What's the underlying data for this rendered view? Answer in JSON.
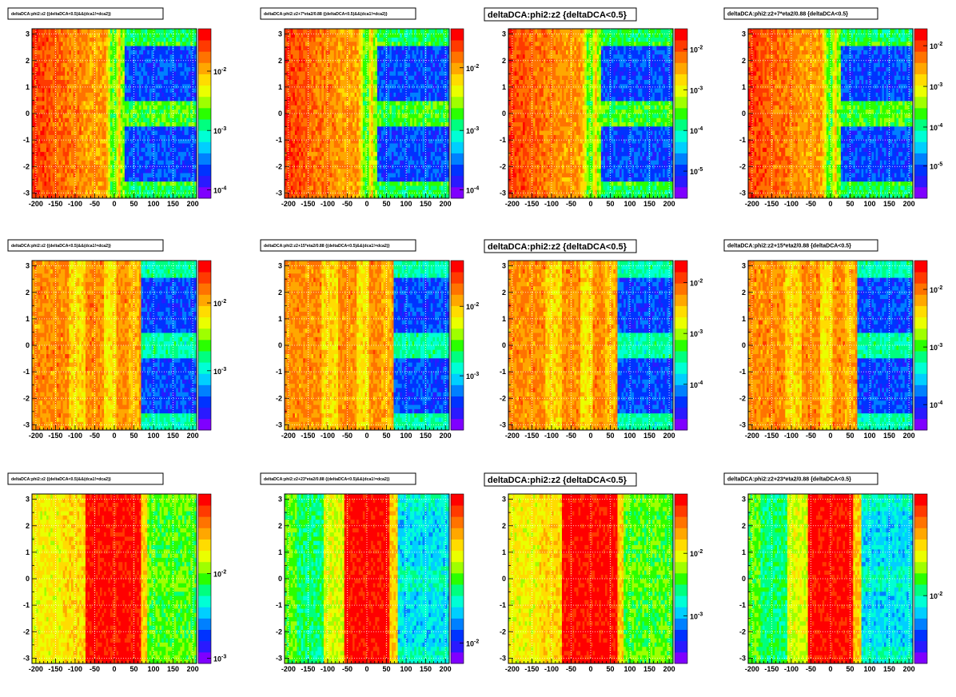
{
  "chart_data": [
    {
      "type": "heatmap",
      "title": "deltaDCA:phi2:z2 {(deltaDCA<0.5)&&(dca1!=dca2)}",
      "title_size": "small",
      "profile": "A",
      "x_ticks": [
        "-200",
        "-150",
        "-100",
        "-50",
        "0",
        "50",
        "100",
        "150",
        "200"
      ],
      "y_ticks": [
        "-3",
        "-2",
        "-1",
        "0",
        "1",
        "2",
        "3"
      ],
      "xlim": [
        -210,
        210
      ],
      "ylim": [
        -3.2,
        3.2
      ],
      "z_scale": "log",
      "z_labels": [
        {
          "text": "10",
          "exp": "-2",
          "pos": 0.25
        },
        {
          "text": "10",
          "exp": "-3",
          "pos": 0.6
        },
        {
          "text": "10",
          "exp": "-4",
          "pos": 0.95
        }
      ],
      "grid": true
    },
    {
      "type": "heatmap",
      "title": "deltaDCA:phi2:z2+7*eta2/0.88 {(deltaDCA<0.5)&&(dca1!=dca2)}",
      "title_size": "small",
      "profile": "A",
      "x_ticks": [
        "-200",
        "-150",
        "-100",
        "-50",
        "0",
        "50",
        "100",
        "150",
        "200"
      ],
      "y_ticks": [
        "-3",
        "-2",
        "-1",
        "0",
        "1",
        "2",
        "3"
      ],
      "xlim": [
        -210,
        210
      ],
      "ylim": [
        -3.2,
        3.2
      ],
      "z_scale": "log",
      "z_labels": [
        {
          "text": "10",
          "exp": "-2",
          "pos": 0.23
        },
        {
          "text": "10",
          "exp": "-3",
          "pos": 0.6
        },
        {
          "text": "10",
          "exp": "-4",
          "pos": 0.95
        }
      ],
      "grid": true
    },
    {
      "type": "heatmap",
      "title": "deltaDCA:phi2:z2 {deltaDCA<0.5}",
      "title_size": "large",
      "profile": "A",
      "x_ticks": [
        "-200",
        "-150",
        "-100",
        "-50",
        "0",
        "50",
        "100",
        "150",
        "200"
      ],
      "y_ticks": [
        "-3",
        "-2",
        "-1",
        "0",
        "1",
        "2",
        "3"
      ],
      "xlim": [
        -210,
        210
      ],
      "ylim": [
        -3.2,
        3.2
      ],
      "z_scale": "log",
      "z_labels": [
        {
          "text": "10",
          "exp": "-2",
          "pos": 0.12
        },
        {
          "text": "10",
          "exp": "-3",
          "pos": 0.36
        },
        {
          "text": "10",
          "exp": "-4",
          "pos": 0.6
        },
        {
          "text": "10",
          "exp": "-5",
          "pos": 0.84
        }
      ],
      "grid": true
    },
    {
      "type": "heatmap",
      "title": "deltaDCA:phi2:z2+7*eta2/0.88 {deltaDCA<0.5}",
      "title_size": "medium",
      "profile": "A",
      "x_ticks": [
        "-200",
        "-150",
        "-100",
        "-50",
        "0",
        "50",
        "100",
        "150",
        "200"
      ],
      "y_ticks": [
        "-3",
        "-2",
        "-1",
        "0",
        "1",
        "2",
        "3"
      ],
      "xlim": [
        -210,
        210
      ],
      "ylim": [
        -3.2,
        3.2
      ],
      "z_scale": "log",
      "z_labels": [
        {
          "text": "10",
          "exp": "-2",
          "pos": 0.1
        },
        {
          "text": "10",
          "exp": "-3",
          "pos": 0.34
        },
        {
          "text": "10",
          "exp": "-4",
          "pos": 0.58
        },
        {
          "text": "10",
          "exp": "-5",
          "pos": 0.81
        }
      ],
      "grid": true
    },
    {
      "type": "heatmap",
      "title": "deltaDCA:phi2:z2 {(deltaDCA<0.5)&&(dca1!=dca2)}",
      "title_size": "small",
      "profile": "B",
      "x_ticks": [
        "-200",
        "-150",
        "-100",
        "-50",
        "0",
        "50",
        "100",
        "150",
        "200"
      ],
      "y_ticks": [
        "-3",
        "-2",
        "-1",
        "0",
        "1",
        "2",
        "3"
      ],
      "xlim": [
        -210,
        210
      ],
      "ylim": [
        -3.2,
        3.2
      ],
      "z_scale": "log",
      "z_labels": [
        {
          "text": "10",
          "exp": "-2",
          "pos": 0.25
        },
        {
          "text": "10",
          "exp": "-3",
          "pos": 0.65
        }
      ],
      "grid": true
    },
    {
      "type": "heatmap",
      "title": "deltaDCA:phi2:z2+15*eta2/0.88 {(deltaDCA<0.5)&&(dca1!=dca2)}",
      "title_size": "small",
      "profile": "B",
      "x_ticks": [
        "-200",
        "-150",
        "-100",
        "-50",
        "0",
        "50",
        "100",
        "150",
        "200"
      ],
      "y_ticks": [
        "-3",
        "-2",
        "-1",
        "0",
        "1",
        "2",
        "3"
      ],
      "xlim": [
        -210,
        210
      ],
      "ylim": [
        -3.2,
        3.2
      ],
      "z_scale": "log",
      "z_labels": [
        {
          "text": "10",
          "exp": "-2",
          "pos": 0.27
        },
        {
          "text": "10",
          "exp": "-3",
          "pos": 0.68
        }
      ],
      "grid": true
    },
    {
      "type": "heatmap",
      "title": "deltaDCA:phi2:z2 {deltaDCA<0.5}",
      "title_size": "large",
      "profile": "B",
      "x_ticks": [
        "-200",
        "-150",
        "-100",
        "-50",
        "0",
        "50",
        "100",
        "150",
        "200"
      ],
      "y_ticks": [
        "-3",
        "-2",
        "-1",
        "0",
        "1",
        "2",
        "3"
      ],
      "xlim": [
        -210,
        210
      ],
      "ylim": [
        -3.2,
        3.2
      ],
      "z_scale": "log",
      "z_labels": [
        {
          "text": "10",
          "exp": "-2",
          "pos": 0.13
        },
        {
          "text": "10",
          "exp": "-3",
          "pos": 0.43
        },
        {
          "text": "10",
          "exp": "-4",
          "pos": 0.73
        }
      ],
      "grid": true
    },
    {
      "type": "heatmap",
      "title": "deltaDCA:phi2:z2+15*eta2/0.88 {deltaDCA<0.5}",
      "title_size": "medium",
      "profile": "B",
      "x_ticks": [
        "-200",
        "-150",
        "-100",
        "-50",
        "0",
        "50",
        "100",
        "150",
        "200"
      ],
      "y_ticks": [
        "-3",
        "-2",
        "-1",
        "0",
        "1",
        "2",
        "3"
      ],
      "xlim": [
        -210,
        210
      ],
      "ylim": [
        -3.2,
        3.2
      ],
      "z_scale": "log",
      "z_labels": [
        {
          "text": "10",
          "exp": "-2",
          "pos": 0.17
        },
        {
          "text": "10",
          "exp": "-3",
          "pos": 0.51
        },
        {
          "text": "10",
          "exp": "-4",
          "pos": 0.85
        }
      ],
      "grid": true
    },
    {
      "type": "heatmap",
      "title": "deltaDCA:phi2:z2 {(deltaDCA<0.5)&&(dca1!=dca2)}",
      "title_size": "small",
      "profile": "C",
      "x_ticks": [
        "-200",
        "-150",
        "-100",
        "-50",
        "0",
        "50",
        "100",
        "150",
        "200"
      ],
      "y_ticks": [
        "-3",
        "-2",
        "-1",
        "0",
        "1",
        "2",
        "3"
      ],
      "xlim": [
        -210,
        210
      ],
      "ylim": [
        -3.2,
        3.2
      ],
      "z_scale": "log",
      "z_labels": [
        {
          "text": "10",
          "exp": "-2",
          "pos": 0.47
        },
        {
          "text": "10",
          "exp": "-3",
          "pos": 0.97
        }
      ],
      "grid": true
    },
    {
      "type": "heatmap",
      "title": "deltaDCA:phi2:z2+23*eta2/0.88 {(deltaDCA<0.5)&&(dca1!=dca2)}",
      "title_size": "small",
      "profile": "D",
      "x_ticks": [
        "-200",
        "-150",
        "-100",
        "-50",
        "0",
        "50",
        "100",
        "150",
        "200"
      ],
      "y_ticks": [
        "-3",
        "-2",
        "-1",
        "0",
        "1",
        "2",
        "3"
      ],
      "xlim": [
        -210,
        210
      ],
      "ylim": [
        -3.2,
        3.2
      ],
      "z_scale": "log",
      "z_labels": [
        {
          "text": "10",
          "exp": "-2",
          "pos": 0.88
        }
      ],
      "grid": true
    },
    {
      "type": "heatmap",
      "title": "deltaDCA:phi2:z2 {deltaDCA<0.5}",
      "title_size": "large",
      "profile": "C",
      "x_ticks": [
        "-200",
        "-150",
        "-100",
        "-50",
        "0",
        "50",
        "100",
        "150",
        "200"
      ],
      "y_ticks": [
        "-3",
        "-2",
        "-1",
        "0",
        "1",
        "2",
        "3"
      ],
      "xlim": [
        -210,
        210
      ],
      "ylim": [
        -3.2,
        3.2
      ],
      "z_scale": "log",
      "z_labels": [
        {
          "text": "10",
          "exp": "-2",
          "pos": 0.35
        },
        {
          "text": "10",
          "exp": "-3",
          "pos": 0.72
        }
      ],
      "grid": true
    },
    {
      "type": "heatmap",
      "title": "deltaDCA:phi2:z2+23*eta2/0.88 {deltaDCA<0.5}",
      "title_size": "medium",
      "profile": "D",
      "x_ticks": [
        "-200",
        "-150",
        "-100",
        "-50",
        "0",
        "50",
        "100",
        "150",
        "200"
      ],
      "y_ticks": [
        "-3",
        "-2",
        "-1",
        "0",
        "1",
        "2",
        "3"
      ],
      "xlim": [
        -210,
        210
      ],
      "ylim": [
        -3.2,
        3.2
      ],
      "z_scale": "log",
      "z_labels": [
        {
          "text": "10",
          "exp": "-2",
          "pos": 0.6
        }
      ],
      "grid": true
    }
  ],
  "palette": [
    "#7f00ff",
    "#2a1aff",
    "#0033ff",
    "#0080ff",
    "#00cfff",
    "#00ffd5",
    "#00ff7f",
    "#2aff00",
    "#9fff00",
    "#eaff00",
    "#ffdc00",
    "#ffa700",
    "#ff7300",
    "#ff3a00",
    "#ff0000"
  ]
}
